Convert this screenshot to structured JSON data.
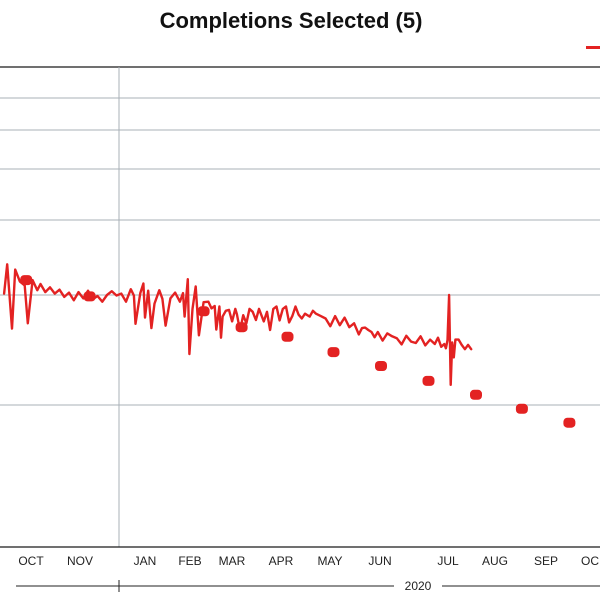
{
  "chart_data": {
    "type": "line",
    "title": "Completions Selected (5)",
    "xlabel": "",
    "ylabel": "",
    "grid": true,
    "colors": {
      "series": "#e32222",
      "grid": "#a9b0b7",
      "axis": "#1a1a1a"
    },
    "x_ticks": [
      "OCT",
      "NOV",
      "JAN",
      "FEB",
      "MAR",
      "APR",
      "MAY",
      "JUN",
      "JUL",
      "AUG",
      "SEP",
      "OC"
    ],
    "year_label": "2020",
    "xlim": [
      "2019-09-12",
      "2020-10-01"
    ],
    "ylim": [
      0,
      1
    ],
    "series": [
      {
        "name": "",
        "style": "line",
        "x": [
          "2019-09-13",
          "2019-09-15",
          "2019-09-18",
          "2019-09-20",
          "2019-09-23",
          "2019-09-26",
          "2019-09-28",
          "2019-10-01",
          "2019-10-04",
          "2019-10-06",
          "2019-10-09",
          "2019-10-12",
          "2019-10-15",
          "2019-10-18",
          "2019-10-21",
          "2019-10-24",
          "2019-10-27",
          "2019-10-30",
          "2019-11-02",
          "2019-11-05",
          "2019-11-08",
          "2019-11-11",
          "2019-11-14",
          "2019-11-17",
          "2019-11-20",
          "2019-11-23",
          "2019-11-26",
          "2019-11-29",
          "2019-12-02",
          "2019-12-04",
          "2019-12-05",
          "2019-12-08",
          "2019-12-10",
          "2019-12-11",
          "2019-12-13",
          "2019-12-15",
          "2019-12-17",
          "2019-12-20",
          "2019-12-22",
          "2019-12-24",
          "2019-12-27",
          "2019-12-30",
          "2020-01-02",
          "2020-01-04",
          "2020-01-05",
          "2020-01-07",
          "2020-01-08",
          "2020-01-10",
          "2020-01-12",
          "2020-01-14",
          "2020-01-17",
          "2020-01-20",
          "2020-01-22",
          "2020-01-24",
          "2020-01-25",
          "2020-01-26",
          "2020-01-27",
          "2020-01-28",
          "2020-01-29",
          "2020-01-31",
          "2020-02-02",
          "2020-02-04",
          "2020-02-06",
          "2020-02-07",
          "2020-02-09",
          "2020-02-11",
          "2020-02-13",
          "2020-02-15",
          "2020-02-17",
          "2020-02-19",
          "2020-02-21",
          "2020-02-24",
          "2020-02-26",
          "2020-02-28",
          "2020-03-01",
          "2020-03-03",
          "2020-03-05",
          "2020-03-07",
          "2020-03-09",
          "2020-03-11",
          "2020-03-13",
          "2020-03-15",
          "2020-03-17",
          "2020-03-19",
          "2020-03-21",
          "2020-03-24",
          "2020-03-26",
          "2020-03-28",
          "2020-03-31",
          "2020-04-03",
          "2020-04-06",
          "2020-04-09",
          "2020-04-12",
          "2020-04-15",
          "2020-04-18",
          "2020-04-21",
          "2020-04-24",
          "2020-04-26",
          "2020-04-28",
          "2020-04-30",
          "2020-05-02",
          "2020-05-04",
          "2020-05-06",
          "2020-05-09",
          "2020-05-12",
          "2020-05-15",
          "2020-05-18",
          "2020-05-21",
          "2020-05-24",
          "2020-05-27",
          "2020-05-30",
          "2020-06-02",
          "2020-06-05",
          "2020-06-08",
          "2020-06-11",
          "2020-06-13",
          "2020-06-15",
          "2020-06-17",
          "2020-06-18",
          "2020-06-19",
          "2020-06-20",
          "2020-06-21",
          "2020-06-22",
          "2020-06-23",
          "2020-06-24",
          "2020-06-26",
          "2020-06-28",
          "2020-06-30",
          "2020-07-02",
          "2020-07-04"
        ],
        "values": [
          0.528,
          0.589,
          0.455,
          0.578,
          0.553,
          0.545,
          0.466,
          0.556,
          0.535,
          0.548,
          0.531,
          0.541,
          0.528,
          0.536,
          0.521,
          0.53,
          0.514,
          0.531,
          0.518,
          0.534,
          0.516,
          0.523,
          0.511,
          0.525,
          0.533,
          0.524,
          0.528,
          0.511,
          0.537,
          0.524,
          0.465,
          0.529,
          0.549,
          0.478,
          0.534,
          0.456,
          0.507,
          0.535,
          0.517,
          0.461,
          0.518,
          0.53,
          0.511,
          0.529,
          0.48,
          0.558,
          0.402,
          0.496,
          0.543,
          0.441,
          0.51,
          0.511,
          0.497,
          0.502,
          0.453,
          0.478,
          0.501,
          0.436,
          0.48,
          0.492,
          0.494,
          0.47,
          0.496,
          0.485,
          0.451,
          0.483,
          0.466,
          0.496,
          0.49,
          0.473,
          0.496,
          0.47,
          0.49,
          0.452,
          0.496,
          0.501,
          0.472,
          0.496,
          0.501,
          0.468,
          0.481,
          0.501,
          0.484,
          0.476,
          0.486,
          0.48,
          0.492,
          0.486,
          0.481,
          0.476,
          0.46,
          0.481,
          0.462,
          0.478,
          0.458,
          0.466,
          0.443,
          0.456,
          0.457,
          0.452,
          0.448,
          0.437,
          0.448,
          0.43,
          0.445,
          0.439,
          0.435,
          0.422,
          0.44,
          0.428,
          0.425,
          0.439,
          0.42,
          0.432,
          0.423,
          0.436,
          0.417,
          0.423,
          0.414,
          0.431,
          0.525,
          0.338,
          0.426,
          0.395,
          0.432,
          0.432,
          0.421,
          0.412,
          0.421,
          0.412
        ]
      },
      {
        "name": "",
        "style": "dots",
        "x": [
          "2019-09-27",
          "2019-11-06",
          "2020-01-17",
          "2020-02-10",
          "2020-03-10",
          "2020-04-08",
          "2020-05-08",
          "2020-06-07",
          "2020-07-07",
          "2020-08-05",
          "2020-09-04",
          "2020-10-03"
        ],
        "values": [
          0.556,
          0.522,
          0.491,
          0.458,
          0.438,
          0.406,
          0.377,
          0.346,
          0.317,
          0.288,
          0.259,
          0.235
        ]
      }
    ]
  }
}
